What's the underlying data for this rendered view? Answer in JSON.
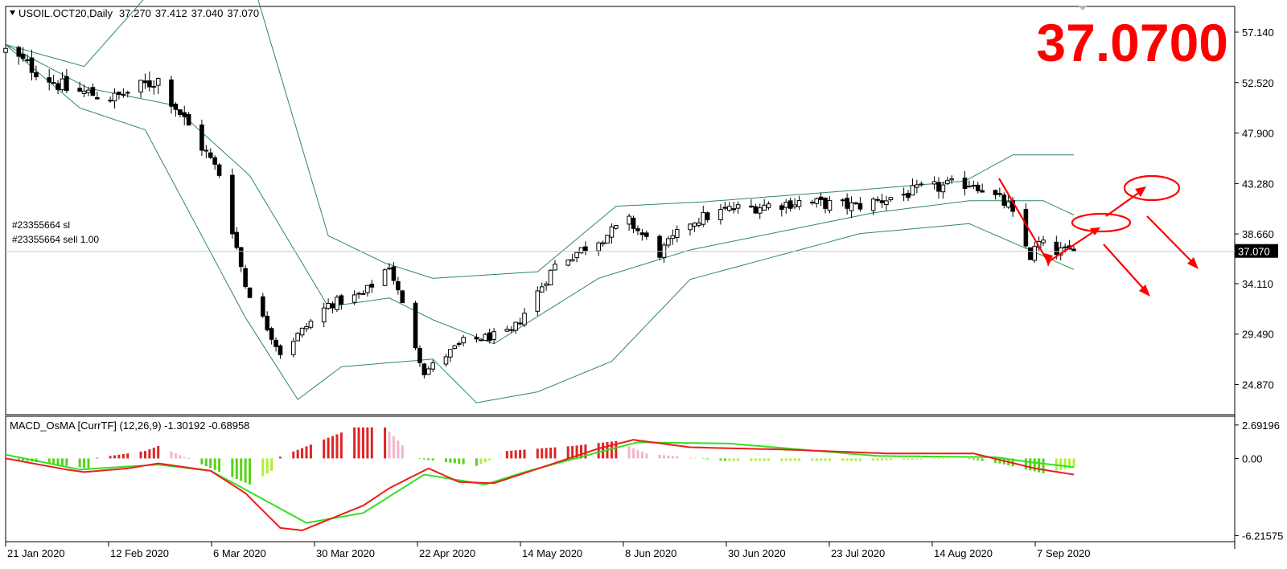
{
  "chart_data": [
    {
      "type": "candlestick",
      "title": "USOIL.OCT20,Daily",
      "ohlc_header": [
        "37.270",
        "37.412",
        "37.040",
        "37.070"
      ],
      "last_price": 37.07,
      "last_price_label": "37.070",
      "big_price_label": "37.0700",
      "y_ticks": [
        "57.140",
        "52.520",
        "47.900",
        "43.280",
        "38.660",
        "34.110",
        "29.490",
        "24.870"
      ],
      "y_tick_values": [
        57.14,
        52.52,
        47.9,
        43.28,
        38.66,
        34.11,
        29.49,
        24.87
      ],
      "ylim": [
        22.7,
        59.2
      ],
      "x_ticks": [
        "21 Jan 2020",
        "12 Feb 2020",
        "6 Mar 2020",
        "30 Mar 2020",
        "22 Apr 2020",
        "14 May 2020",
        "8 Jun 2020",
        "30 Jun 2020",
        "23 Jul 2020",
        "14 Aug 2020",
        "7 Sep 2020"
      ],
      "order_labels": [
        "#23355664 sl",
        "#23355664 sell 1.00"
      ],
      "path_dates": [
        "2020-01-17",
        "2020-01-31",
        "2020-02-11",
        "2020-02-21",
        "2020-03-06",
        "2020-03-12",
        "2020-03-20",
        "2020-03-31",
        "2020-04-08",
        "2020-04-14",
        "2020-04-22",
        "2020-05-01",
        "2020-05-12",
        "2020-05-22",
        "2020-06-08",
        "2020-06-15",
        "2020-06-22",
        "2020-07-01",
        "2020-07-17",
        "2020-07-30",
        "2020-08-14",
        "2020-08-26",
        "2020-09-03",
        "2020-09-08",
        "2020-09-10",
        "2020-09-14"
      ],
      "path_closes": [
        55.4,
        51.9,
        51.1,
        52.8,
        44.2,
        34.0,
        27.8,
        32.2,
        33.1,
        35.8,
        26.0,
        28.8,
        29.6,
        35.8,
        39.8,
        36.9,
        39.8,
        40.9,
        41.6,
        41.2,
        42.7,
        43.4,
        41.2,
        36.6,
        37.8,
        37.07
      ],
      "bollinger": {
        "upper_dates": [
          "2020-01-17",
          "2020-02-04",
          "2020-02-24",
          "2020-03-12",
          "2020-03-31",
          "2020-04-13",
          "2020-04-24",
          "2020-05-18",
          "2020-06-05",
          "2020-06-25",
          "2020-07-31",
          "2020-08-24",
          "2020-09-04",
          "2020-09-18"
        ],
        "upper_values": [
          56.0,
          54.0,
          63.0,
          64.0,
          38.5,
          36.0,
          34.6,
          35.2,
          41.2,
          41.6,
          42.7,
          43.5,
          45.9,
          45.9
        ],
        "middle_dates": [
          "2020-01-17",
          "2020-02-05",
          "2020-02-24",
          "2020-03-13",
          "2020-03-31",
          "2020-04-14",
          "2020-04-24",
          "2020-05-08",
          "2020-06-01",
          "2020-06-22",
          "2020-08-03",
          "2020-08-25",
          "2020-09-11",
          "2020-09-18"
        ],
        "middle_values": [
          56.0,
          52.0,
          50.5,
          44.0,
          32.0,
          32.8,
          30.8,
          28.6,
          34.6,
          37.2,
          40.6,
          41.7,
          41.7,
          40.4
        ],
        "lower_dates": [
          "2020-01-17",
          "2020-02-03",
          "2020-02-18",
          "2020-03-12",
          "2020-03-24",
          "2020-04-03",
          "2020-04-24",
          "2020-05-04",
          "2020-05-18",
          "2020-06-04",
          "2020-06-22",
          "2020-07-31",
          "2020-08-25",
          "2020-09-09",
          "2020-09-18"
        ],
        "lower_values": [
          56.0,
          50.2,
          48.2,
          31.0,
          23.5,
          26.5,
          27.2,
          23.2,
          24.2,
          27.0,
          34.5,
          38.7,
          39.6,
          37.0,
          35.4
        ]
      }
    },
    {
      "type": "macd",
      "title": "MACD_OsMA [CurrTF] (12,26,9) -1.30192 -0.68958",
      "y_ticks": [
        "2.69196",
        "0.00",
        "-6.21575"
      ],
      "y_tick_values": [
        2.69196,
        0.0,
        -6.21575
      ],
      "ylim": [
        -6.45,
        3.2
      ],
      "histogram_dates": [
        "2020-01-17",
        "2020-02-05",
        "2020-02-06",
        "2020-02-18",
        "2020-02-21",
        "2020-03-13",
        "2020-03-18",
        "2020-03-19",
        "2020-04-06",
        "2020-04-13",
        "2020-04-20",
        "2020-05-04",
        "2020-05-08",
        "2020-05-11",
        "2020-05-26",
        "2020-06-05",
        "2020-06-12",
        "2020-06-30",
        "2020-07-31",
        "2020-08-24",
        "2020-09-01",
        "2020-09-11",
        "2020-09-18"
      ],
      "histogram_values": [
        0.0,
        -0.8,
        0.0,
        0.6,
        1.0,
        -2.1,
        -1.0,
        0.0,
        2.5,
        2.5,
        0.0,
        -0.6,
        0.0,
        0.6,
        1.0,
        1.4,
        0.4,
        -0.2,
        -0.2,
        0.0,
        -0.4,
        -1.2,
        -0.7
      ],
      "macd_dates": [
        "2020-01-17",
        "2020-01-31",
        "2020-02-04",
        "2020-02-14",
        "2020-02-21",
        "2020-03-04",
        "2020-03-12",
        "2020-03-20",
        "2020-03-25",
        "2020-04-08",
        "2020-04-14",
        "2020-04-23",
        "2020-04-30",
        "2020-05-08",
        "2020-05-20",
        "2020-06-01",
        "2020-06-09",
        "2020-06-22",
        "2020-07-15",
        "2020-08-06",
        "2020-08-26",
        "2020-09-09",
        "2020-09-18"
      ],
      "macd_values": [
        0.0,
        -0.9,
        -1.1,
        -0.8,
        -0.4,
        -1.0,
        -2.8,
        -5.6,
        -5.8,
        -3.8,
        -2.4,
        -0.8,
        -1.9,
        -2.0,
        -0.6,
        0.8,
        1.5,
        0.9,
        0.7,
        0.4,
        0.4,
        -0.8,
        -1.3
      ],
      "signal_dates": [
        "2020-01-17",
        "2020-02-03",
        "2020-02-21",
        "2020-03-04",
        "2020-03-13",
        "2020-03-26",
        "2020-04-08",
        "2020-04-22",
        "2020-05-06",
        "2020-05-15",
        "2020-06-01",
        "2020-06-10",
        "2020-07-01",
        "2020-08-04",
        "2020-08-31",
        "2020-09-08",
        "2020-09-18"
      ],
      "signal_values": [
        0.3,
        -0.9,
        -0.5,
        -1.0,
        -2.7,
        -5.2,
        -4.4,
        -1.3,
        -2.1,
        -1.1,
        0.5,
        1.3,
        1.2,
        0.2,
        0.1,
        -0.3,
        -0.7
      ],
      "colors": {
        "hist_strong_up": "#dd2525",
        "hist_weak_up": "#f2b6c8",
        "hist_strong_down": "#56d318",
        "hist_weak_down": "#b2ee3a",
        "macd": "#ee1c1c",
        "signal": "#33e020"
      }
    }
  ],
  "colors": {
    "price_band": "#2e8b57",
    "candle": "#000000",
    "annotation": "#ff0000",
    "price_label_bg": "#000000",
    "price_label_text": "#ffffff"
  }
}
